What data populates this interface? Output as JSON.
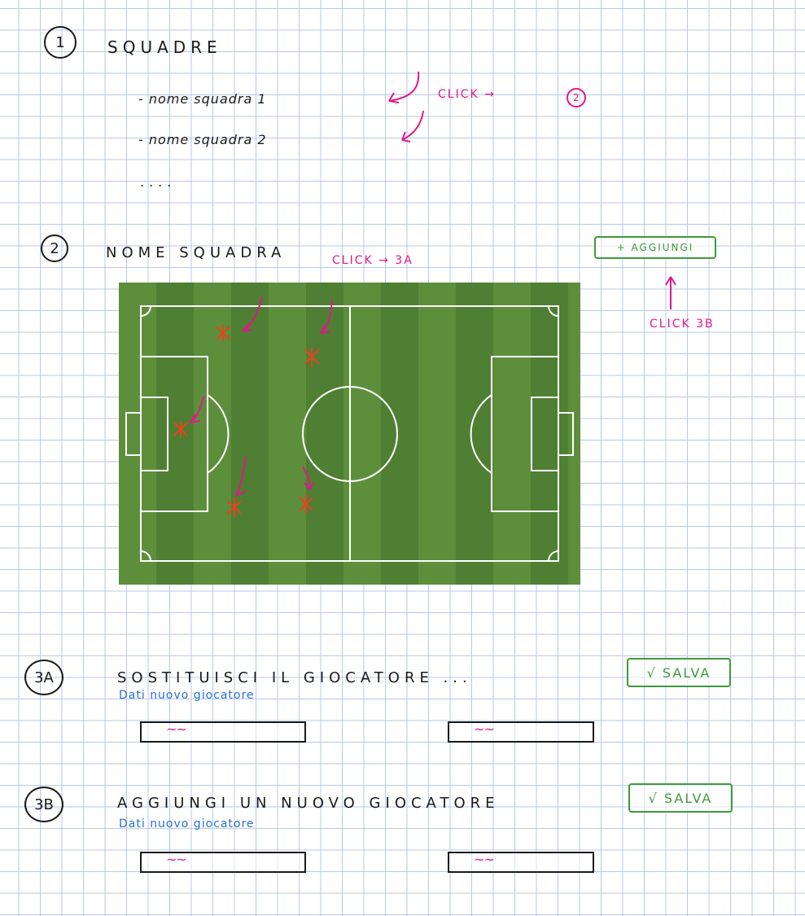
{
  "section1": {
    "number": "1",
    "title": "SQUADRE",
    "items": [
      "- nome squadra 1",
      "- nome squadra 2"
    ],
    "more": "....",
    "note_click": "CLICK →",
    "note_target": "2"
  },
  "section2": {
    "number": "2",
    "title": "NOME SQUADRA",
    "note_click": "CLICK → 3A",
    "add_button": "+ AGGIUNGI",
    "note_add": "CLICK 3B"
  },
  "section3a": {
    "number": "3A",
    "title": "SOSTITUISCI IL GIOCATORE ...",
    "save_button": "√ SALVA",
    "subtitle": "Dati nuovo giocatore",
    "field_scribble": "~~"
  },
  "section3b": {
    "number": "3B",
    "title": "AGGIUNGI UN NUOVO GIOCATORE",
    "save_button": "√ SALVA",
    "subtitle": "Dati nuovo giocatore",
    "field_scribble": "~~"
  },
  "colors": {
    "ink": "#1a1a1a",
    "annotation": "#e0188c",
    "button": "#3f9a3a",
    "subtitle": "#2a6fd6",
    "grid": "#b8c9e6",
    "pitch": "#4f7f33",
    "player": "#e8431e"
  }
}
